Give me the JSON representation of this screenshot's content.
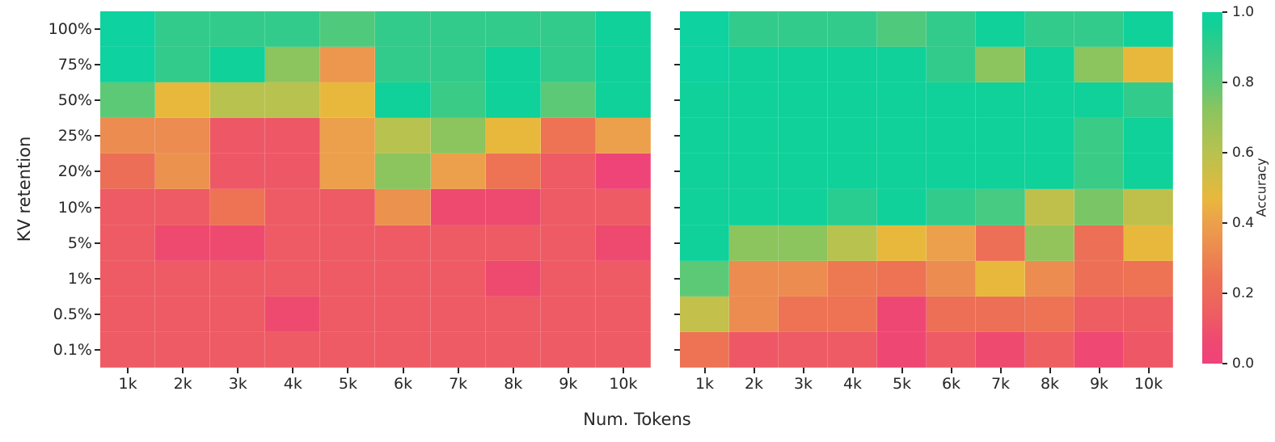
{
  "figure": {
    "background": "#ffffff",
    "tick_color": "#262626"
  },
  "axes": {
    "y_label": "KV retention",
    "x_label": "Num. Tokens",
    "y_ticks": [
      "100%",
      "75%",
      "50%",
      "25%",
      "20%",
      "10%",
      "5%",
      "1%",
      "0.5%",
      "0.1%"
    ],
    "x_ticks": [
      "1k",
      "2k",
      "3k",
      "4k",
      "5k",
      "6k",
      "7k",
      "8k",
      "9k",
      "10k"
    ]
  },
  "colorbar": {
    "label": "Accuracy",
    "tick_labels": [
      "1.0",
      "0.8",
      "0.6",
      "0.4",
      "0.2",
      "0.0"
    ],
    "tick_values": [
      1.0,
      0.8,
      0.6,
      0.4,
      0.2,
      0.0
    ],
    "stops": [
      {
        "v": 0.0,
        "c": "#F0427B"
      },
      {
        "v": 0.07,
        "c": "#EE4A6F"
      },
      {
        "v": 0.13,
        "c": "#EE5B64"
      },
      {
        "v": 0.2,
        "c": "#ED6A59"
      },
      {
        "v": 0.25,
        "c": "#ED7354"
      },
      {
        "v": 0.33,
        "c": "#EC8C50"
      },
      {
        "v": 0.4,
        "c": "#ECA04B"
      },
      {
        "v": 0.47,
        "c": "#E8B83C"
      },
      {
        "v": 0.6,
        "c": "#B8C24F"
      },
      {
        "v": 0.72,
        "c": "#8CC45E"
      },
      {
        "v": 0.8,
        "c": "#5CC977"
      },
      {
        "v": 0.9,
        "c": "#32CB8B"
      },
      {
        "v": 0.97,
        "c": "#0FD199"
      },
      {
        "v": 1.0,
        "c": "#0ED2A0"
      }
    ]
  },
  "chart_data": [
    {
      "type": "heatmap",
      "panel": "left",
      "x": [
        "1k",
        "2k",
        "3k",
        "4k",
        "5k",
        "6k",
        "7k",
        "8k",
        "9k",
        "10k"
      ],
      "y": [
        "100%",
        "75%",
        "50%",
        "25%",
        "20%",
        "10%",
        "5%",
        "1%",
        "0.5%",
        "0.1%"
      ],
      "xlabel": "Num. Tokens",
      "ylabel": "KV retention",
      "value_label": "Accuracy",
      "value_range": [
        0,
        1
      ],
      "values": [
        [
          1.0,
          0.9,
          0.9,
          0.9,
          0.83,
          0.9,
          0.9,
          0.9,
          0.9,
          0.97
        ],
        [
          1.0,
          0.9,
          0.97,
          0.72,
          0.37,
          0.9,
          0.9,
          0.97,
          0.9,
          0.97
        ],
        [
          0.8,
          0.47,
          0.6,
          0.6,
          0.47,
          0.97,
          0.88,
          0.97,
          0.8,
          0.97
        ],
        [
          0.33,
          0.33,
          0.12,
          0.12,
          0.4,
          0.6,
          0.72,
          0.47,
          0.25,
          0.4
        ],
        [
          0.22,
          0.35,
          0.12,
          0.12,
          0.4,
          0.72,
          0.4,
          0.25,
          0.13,
          0.02
        ],
        [
          0.13,
          0.13,
          0.25,
          0.13,
          0.13,
          0.35,
          0.07,
          0.07,
          0.13,
          0.13
        ],
        [
          0.13,
          0.07,
          0.07,
          0.13,
          0.13,
          0.13,
          0.13,
          0.13,
          0.13,
          0.07
        ],
        [
          0.13,
          0.13,
          0.13,
          0.13,
          0.13,
          0.13,
          0.13,
          0.07,
          0.13,
          0.13
        ],
        [
          0.13,
          0.13,
          0.13,
          0.07,
          0.13,
          0.13,
          0.13,
          0.13,
          0.13,
          0.13
        ],
        [
          0.13,
          0.13,
          0.13,
          0.13,
          0.13,
          0.13,
          0.13,
          0.13,
          0.13,
          0.13
        ]
      ]
    },
    {
      "type": "heatmap",
      "panel": "right",
      "x": [
        "1k",
        "2k",
        "3k",
        "4k",
        "5k",
        "6k",
        "7k",
        "8k",
        "9k",
        "10k"
      ],
      "y": [
        "100%",
        "75%",
        "50%",
        "25%",
        "20%",
        "10%",
        "5%",
        "1%",
        "0.5%",
        "0.1%"
      ],
      "xlabel": "Num. Tokens",
      "ylabel": "KV retention",
      "value_label": "Accuracy",
      "value_range": [
        0,
        1
      ],
      "values": [
        [
          1.0,
          0.9,
          0.9,
          0.9,
          0.83,
          0.9,
          0.97,
          0.9,
          0.9,
          0.97
        ],
        [
          1.0,
          0.97,
          0.97,
          0.97,
          0.97,
          0.9,
          0.72,
          0.97,
          0.72,
          0.47
        ],
        [
          0.97,
          0.97,
          0.97,
          0.97,
          0.97,
          0.97,
          0.97,
          0.97,
          0.97,
          0.9
        ],
        [
          0.97,
          0.97,
          0.97,
          0.97,
          0.97,
          0.97,
          0.97,
          0.97,
          0.88,
          0.97
        ],
        [
          0.97,
          0.97,
          0.97,
          0.97,
          0.97,
          0.97,
          0.97,
          0.97,
          0.88,
          0.97
        ],
        [
          0.97,
          0.97,
          0.97,
          0.92,
          0.97,
          0.9,
          0.85,
          0.58,
          0.75,
          0.58
        ],
        [
          0.97,
          0.72,
          0.72,
          0.6,
          0.47,
          0.4,
          0.23,
          0.7,
          0.23,
          0.47
        ],
        [
          0.8,
          0.33,
          0.33,
          0.27,
          0.25,
          0.33,
          0.47,
          0.33,
          0.23,
          0.25
        ],
        [
          0.57,
          0.33,
          0.25,
          0.25,
          0.04,
          0.23,
          0.23,
          0.25,
          0.14,
          0.14
        ],
        [
          0.25,
          0.12,
          0.13,
          0.13,
          0.04,
          0.13,
          0.07,
          0.15,
          0.05,
          0.12
        ]
      ]
    }
  ]
}
